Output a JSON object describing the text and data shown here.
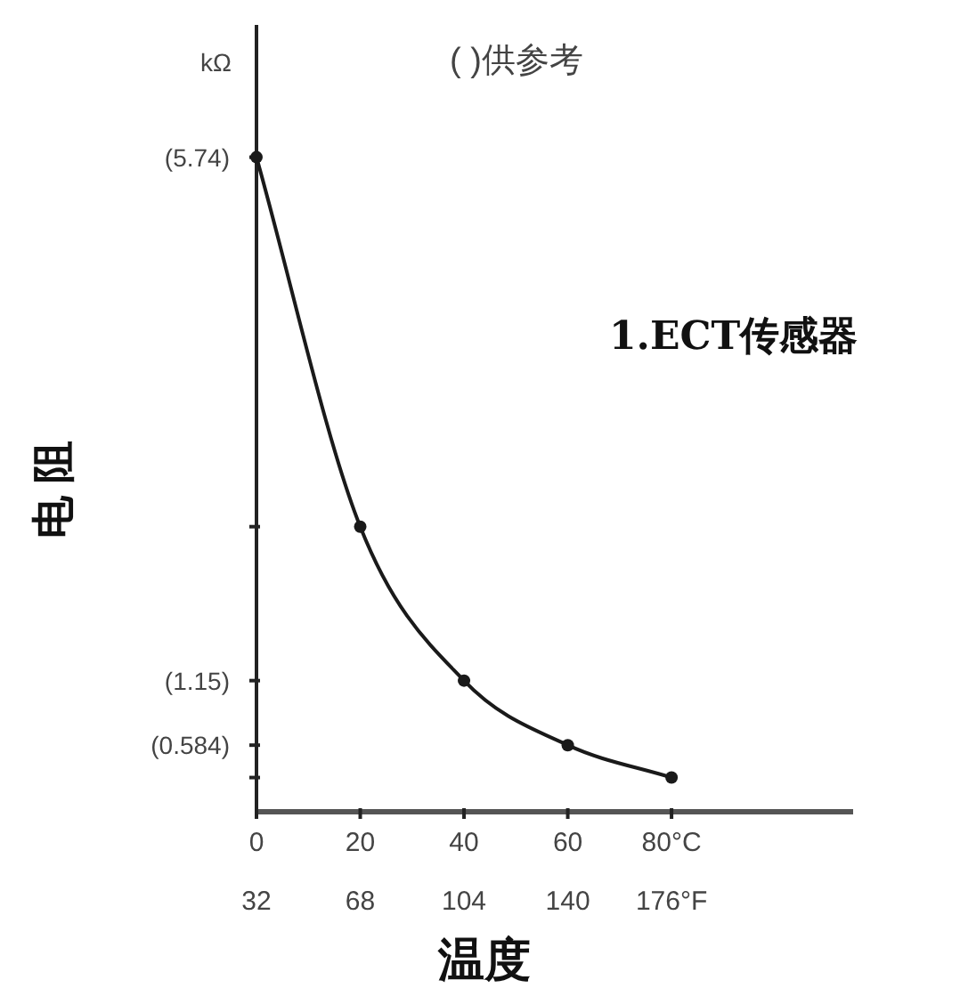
{
  "chart_data": {
    "type": "line",
    "title": "( )供参考",
    "xlabel": "温度",
    "ylabel": "电 阻",
    "annotations": [
      "kΩ",
      "1.ECT传感器"
    ],
    "x": [
      0,
      20,
      40,
      60,
      80
    ],
    "series": [
      {
        "color": "#1a1a1a",
        "values": [
          5.74,
          2.5,
          1.15,
          0.584,
          0.3
        ]
      }
    ],
    "xlim": [
      0,
      115
    ],
    "xticks": [
      0,
      20,
      40,
      60,
      {
        "value": 80,
        "label": "80°C"
      }
    ],
    "x2lim": [
      32,
      239
    ],
    "x2ticks": [
      32,
      68,
      104,
      140,
      {
        "value": 176,
        "label": "176°F"
      }
    ],
    "ylim": [
      0,
      6.9
    ],
    "yticks": [
      {
        "value": 5.74,
        "label": "(5.74)"
      },
      {
        "value": 2.5,
        "label": null
      },
      {
        "value": 1.15,
        "label": "(1.15)"
      },
      {
        "value": 0.584,
        "label": "(0.584)"
      },
      {
        "value": 0.3,
        "label": null
      }
    ],
    "marker": "circle",
    "line_style": "solid"
  }
}
